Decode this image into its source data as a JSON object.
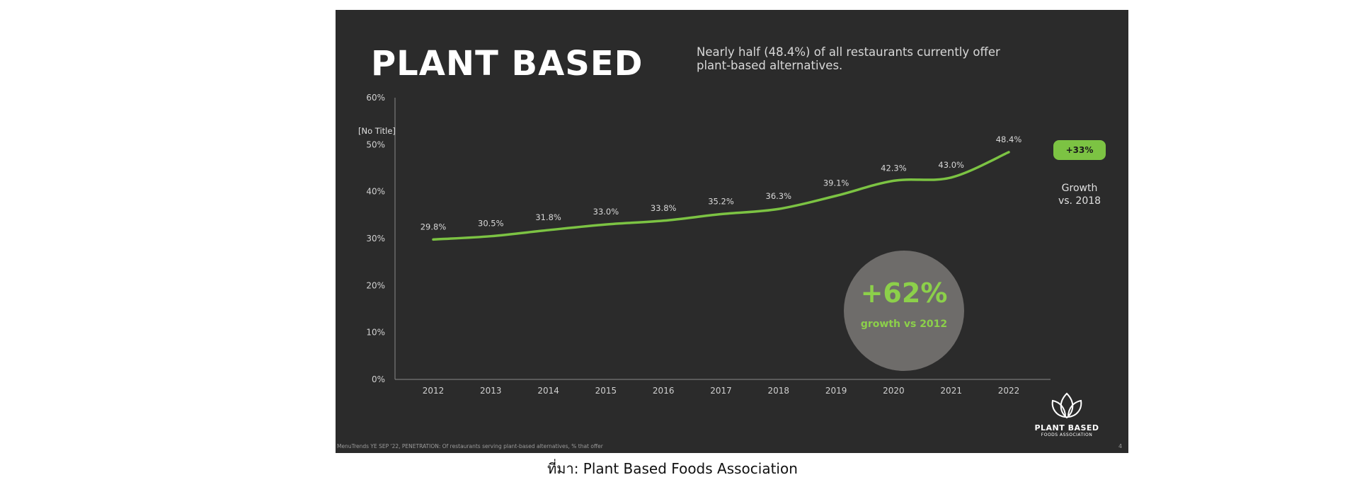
{
  "slide": {
    "title": "PLANT BASED",
    "subtitle_line1": "Nearly half (48.4%) of all restaurants currently offer",
    "subtitle_line2": "plant-based alternatives.",
    "badge": {
      "value": "+33%",
      "sub_line1": "Growth",
      "sub_line2": "vs. 2018",
      "color": "#7cc343"
    },
    "circle": {
      "value": "+62%",
      "text": "growth vs 2012",
      "color": "#8cd04a"
    },
    "logo": {
      "name": "PLANT BASED",
      "sub": "FOODS ASSOCIATION"
    },
    "footnote": "MenuTrends YE SEP '22, PENETRATION: Of restaurants serving plant-based alternatives, % that offer",
    "page_number": "4"
  },
  "caption": "ที่มา: Plant Based Foods Association",
  "chart_data": {
    "type": "line",
    "title": "[No Title]",
    "categories": [
      "2012",
      "2013",
      "2014",
      "2015",
      "2016",
      "2017",
      "2018",
      "2019",
      "2020",
      "2021",
      "2022"
    ],
    "values": [
      29.8,
      30.5,
      31.8,
      33.0,
      33.8,
      35.2,
      36.3,
      39.1,
      42.3,
      43.0,
      48.4
    ],
    "data_labels": [
      "29.8%",
      "30.5%",
      "31.8%",
      "33.0%",
      "33.8%",
      "35.2%",
      "36.3%",
      "39.1%",
      "42.3%",
      "43.0%",
      "48.4%"
    ],
    "yticks": [
      0,
      10,
      20,
      30,
      40,
      50,
      60
    ],
    "ytick_labels": [
      "0%",
      "10%",
      "20%",
      "30%",
      "40%",
      "50%",
      "60%"
    ],
    "ylim": [
      0,
      60
    ],
    "line_color": "#7cc343",
    "grid": false
  }
}
